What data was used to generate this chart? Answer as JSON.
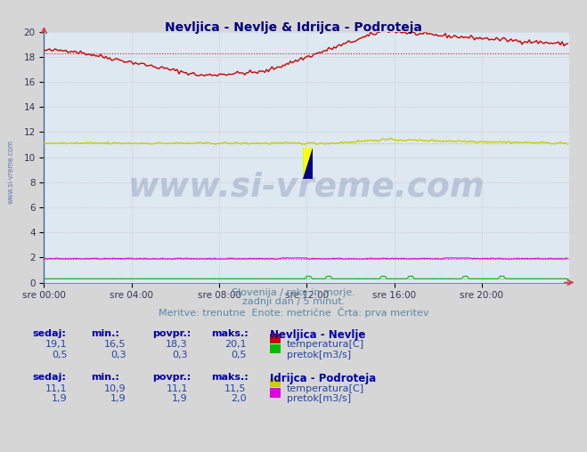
{
  "title": "Nevljica - Nevlje & Idrijca - Podroteja",
  "title_color": "#000080",
  "bg_color": "#d6d6d6",
  "plot_bg_color": "#dde8f0",
  "grid_color": "#c0c8d8",
  "xlim": [
    0,
    288
  ],
  "ylim": [
    0,
    20
  ],
  "yticks": [
    0,
    2,
    4,
    6,
    8,
    10,
    12,
    14,
    16,
    18,
    20
  ],
  "xtick_labels": [
    "sre 00:00",
    "sre 04:00",
    "sre 08:00",
    "sre 12:00",
    "sre 16:00",
    "sre 20:00"
  ],
  "xtick_positions": [
    0,
    48,
    96,
    144,
    192,
    240
  ],
  "subtitle1": "Slovenija / reke in morje.",
  "subtitle2": "zadnji dan / 5 minut.",
  "subtitle3": "Meritve: trenutne  Enote: metrične  Črta: prva meritev",
  "subtitle_color": "#5588aa",
  "watermark_text": "www.si-vreme.com",
  "watermark_color": "#1a2a6c",
  "watermark_alpha": 0.18,
  "legend_title1": "Nevljica - Nevlje",
  "legend_title2": "Idrijca - Podroteja",
  "legend_color": "#000080",
  "nevljica_temp_color": "#cc0000",
  "nevljica_pretok_color": "#00bb00",
  "idrijca_temp_color": "#cccc00",
  "idrijca_pretok_color": "#dd00dd",
  "nevljica_temp_avg": 18.3,
  "nevljica_pretok_avg": 0.3,
  "idrijca_temp_avg": 11.1,
  "idrijca_pretok_avg": 1.9,
  "table_text_color": "#2244aa",
  "table_header_color": "#0000aa",
  "nevljica_sedaj": "19,1",
  "nevljica_min": "16,5",
  "nevljica_povpr": "18,3",
  "nevljica_maks": "20,1",
  "nevljica_pretok_sedaj": "0,5",
  "nevljica_pretok_min": "0,3",
  "nevljica_pretok_povpr": "0,3",
  "nevljica_pretok_maks": "0,5",
  "idrijca_sedaj": "11,1",
  "idrijca_min": "10,9",
  "idrijca_povpr": "11,1",
  "idrijca_maks": "11,5",
  "idrijca_pretok_sedaj": "1,9",
  "idrijca_pretok_min": "1,9",
  "idrijca_pretok_povpr": "1,9",
  "idrijca_pretok_maks": "2,0"
}
